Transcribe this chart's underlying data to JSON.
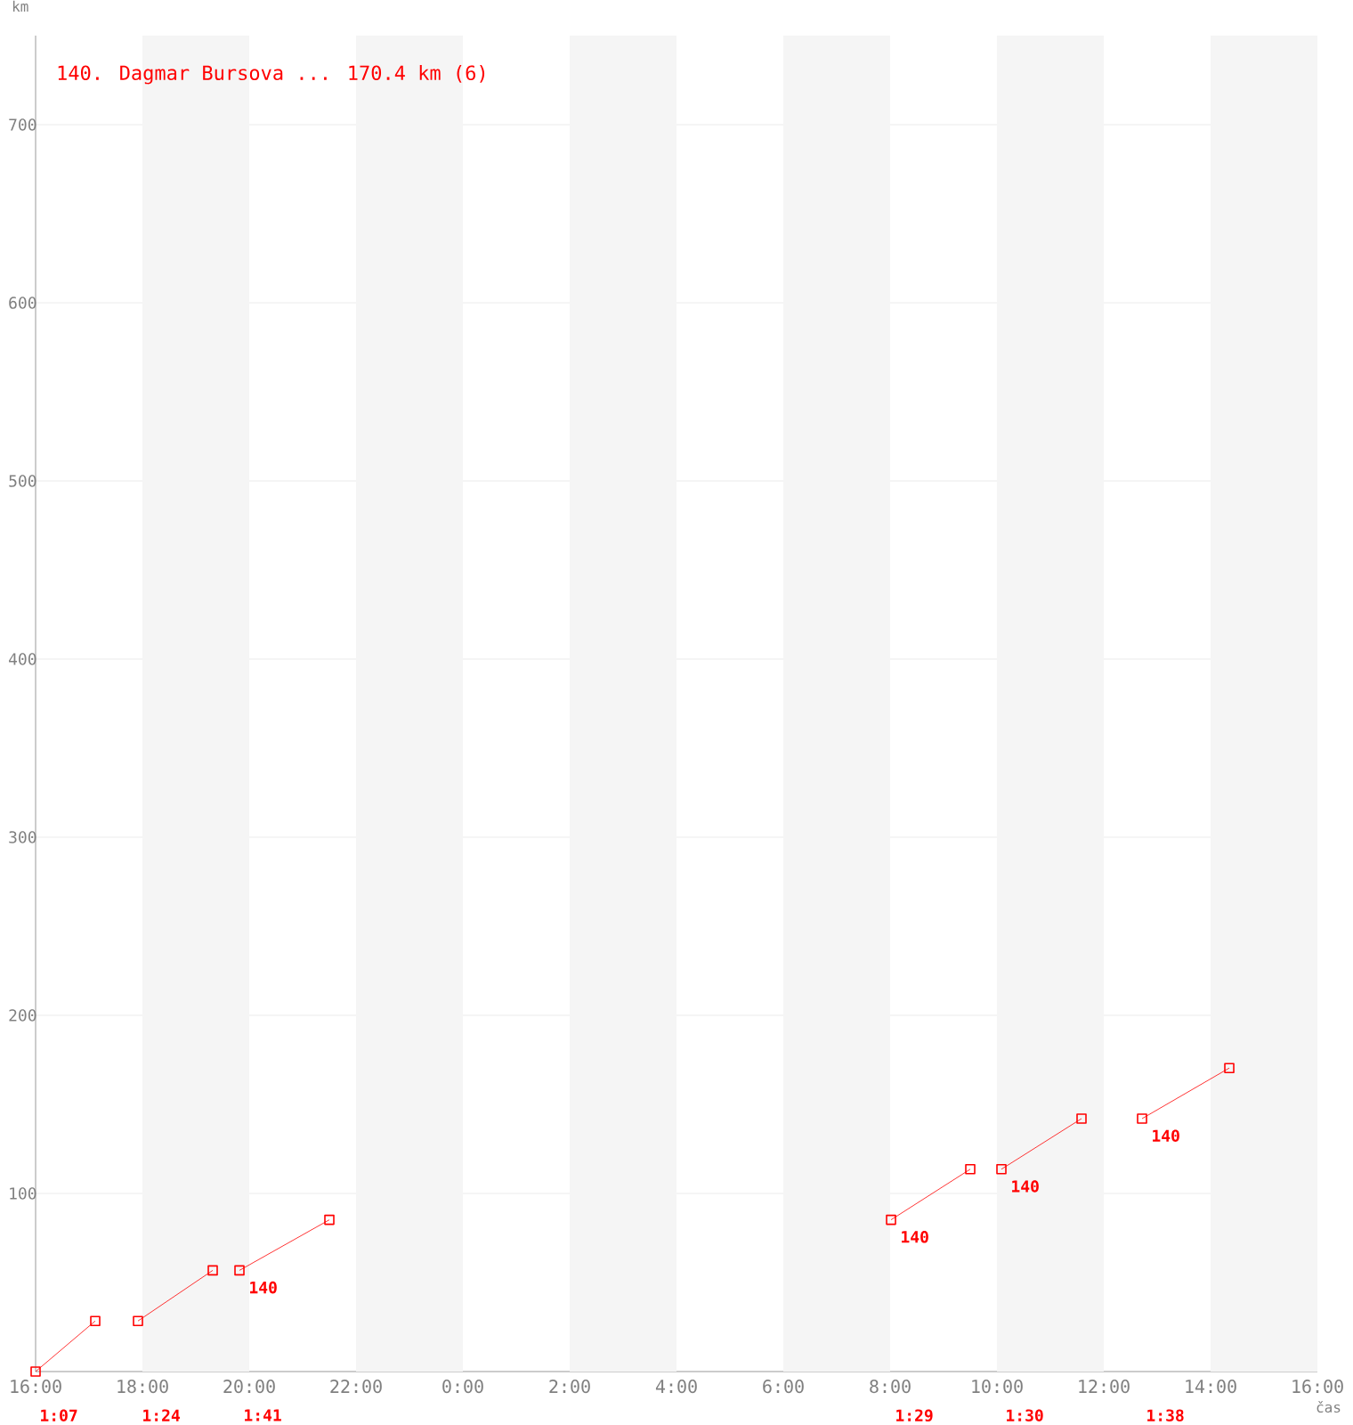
{
  "chart_data": {
    "type": "line",
    "title": "140. Dagmar Bursova ... 170.4 km (6)",
    "xlabel": "čas",
    "ylabel": "km",
    "series": [
      {
        "color": "#ff0000",
        "x": [
          "2000-01-01T16:00",
          "2000-01-01T17:07"
        ],
        "values": [
          0,
          28.4
        ]
      },
      {
        "color": "#ff0000",
        "x": [
          "2000-01-01T17:55",
          "2000-01-01T19:19"
        ],
        "values": [
          28.4,
          56.8
        ]
      },
      {
        "color": "#ff0000",
        "x": [
          "2000-01-01T19:49",
          "2000-01-01T21:30"
        ],
        "values": [
          56.8,
          85.2
        ]
      },
      {
        "color": "#ff0000",
        "x": [
          "2000-01-02T08:01",
          "2000-01-02T09:30"
        ],
        "values": [
          85.2,
          113.6
        ]
      },
      {
        "color": "#ff0000",
        "x": [
          "2000-01-02T10:05",
          "2000-01-02T11:35"
        ],
        "values": [
          113.6,
          142
        ]
      },
      {
        "color": "#ff0000",
        "x": [
          "2000-01-02T12:43",
          "2000-01-02T14:21"
        ],
        "values": [
          142,
          170.4
        ]
      }
    ],
    "xlim": [
      "2000-01-01T16:00",
      "2000-01-02T16:00"
    ],
    "ylim": [
      0,
      750
    ],
    "xticks": [
      {
        "value": "2000-01-01T16:00",
        "label": "16:00"
      },
      {
        "value": "2000-01-01T18:00",
        "label": "18:00"
      },
      {
        "value": "2000-01-01T20:00",
        "label": "20:00"
      },
      {
        "value": "2000-01-01T22:00",
        "label": "22:00"
      },
      {
        "value": "2000-01-02T00:00",
        "label": "0:00"
      },
      {
        "value": "2000-01-02T02:00",
        "label": "2:00"
      },
      {
        "value": "2000-01-02T04:00",
        "label": "4:00"
      },
      {
        "value": "2000-01-02T06:00",
        "label": "6:00"
      },
      {
        "value": "2000-01-02T08:00",
        "label": "8:00"
      },
      {
        "value": "2000-01-02T10:00",
        "label": "10:00"
      },
      {
        "value": "2000-01-02T12:00",
        "label": "12:00"
      },
      {
        "value": "2000-01-02T14:00",
        "label": "14:00"
      },
      {
        "value": "2000-01-02T16:00",
        "label": "16:00"
      }
    ],
    "yticks": [
      100,
      200,
      300,
      400,
      500,
      600,
      700
    ],
    "grid": "y",
    "marker": "square",
    "line_style": "solid",
    "bands": [
      {
        "axis": "x",
        "from": "2000-01-01T18:00",
        "to": "2000-01-01T20:00",
        "color": "#f5f5f5"
      },
      {
        "axis": "x",
        "from": "2000-01-01T22:00",
        "to": "2000-01-02T00:00",
        "color": "#f5f5f5"
      },
      {
        "axis": "x",
        "from": "2000-01-02T02:00",
        "to": "2000-01-02T04:00",
        "color": "#f5f5f5"
      },
      {
        "axis": "x",
        "from": "2000-01-02T06:00",
        "to": "2000-01-02T08:00",
        "color": "#f5f5f5"
      },
      {
        "axis": "x",
        "from": "2000-01-02T10:00",
        "to": "2000-01-02T12:00",
        "color": "#f5f5f5"
      },
      {
        "axis": "x",
        "from": "2000-01-02T14:00",
        "to": "2000-01-02T16:00",
        "color": "#f5f5f5"
      }
    ],
    "annotations": [
      {
        "text": "140",
        "x": "2000-01-01T19:49",
        "y": 56.8
      },
      {
        "text": "140",
        "x": "2000-01-02T08:01",
        "y": 85.2
      },
      {
        "text": "140",
        "x": "2000-01-02T10:05",
        "y": 113.6
      },
      {
        "text": "140",
        "x": "2000-01-02T12:43",
        "y": 142
      },
      "1:07",
      "1:24",
      "1:41",
      "1:29",
      "1:30",
      "1:38"
    ]
  }
}
